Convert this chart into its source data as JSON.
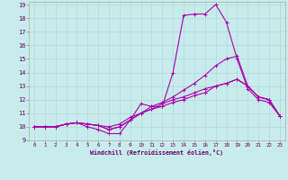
{
  "xlabel": "Windchill (Refroidissement éolien,°C)",
  "bg_color": "#c8ecec",
  "grid_color": "#b0d8d8",
  "line_color": "#aa00aa",
  "xlim": [
    -0.5,
    23.5
  ],
  "ylim": [
    9,
    19.2
  ],
  "xticks": [
    0,
    1,
    2,
    3,
    4,
    5,
    6,
    7,
    8,
    9,
    10,
    11,
    12,
    13,
    14,
    15,
    16,
    17,
    18,
    19,
    20,
    21,
    22,
    23
  ],
  "yticks": [
    9,
    10,
    11,
    12,
    13,
    14,
    15,
    16,
    17,
    18,
    19
  ],
  "lines": [
    [
      10.0,
      10.0,
      10.0,
      10.2,
      10.3,
      10.0,
      9.8,
      9.5,
      9.5,
      10.5,
      11.7,
      11.5,
      11.5,
      14.0,
      18.2,
      18.3,
      18.3,
      19.0,
      17.7,
      15.0,
      12.8,
      12.0,
      11.8,
      10.8
    ],
    [
      10.0,
      10.0,
      10.0,
      10.2,
      10.3,
      10.2,
      10.1,
      9.8,
      10.0,
      10.5,
      11.0,
      11.5,
      11.8,
      12.2,
      12.7,
      13.2,
      13.8,
      14.5,
      15.0,
      15.2,
      13.0,
      12.2,
      12.0,
      10.8
    ],
    [
      10.0,
      10.0,
      10.0,
      10.2,
      10.3,
      10.2,
      10.1,
      9.8,
      10.0,
      10.5,
      11.0,
      11.3,
      11.5,
      11.8,
      12.0,
      12.3,
      12.5,
      13.0,
      13.2,
      13.5,
      13.0,
      12.2,
      12.0,
      10.8
    ],
    [
      10.0,
      10.0,
      10.0,
      10.2,
      10.3,
      10.2,
      10.1,
      10.0,
      10.2,
      10.7,
      11.0,
      11.3,
      11.7,
      12.0,
      12.2,
      12.5,
      12.8,
      13.0,
      13.2,
      13.5,
      13.0,
      12.2,
      12.0,
      10.8
    ]
  ]
}
